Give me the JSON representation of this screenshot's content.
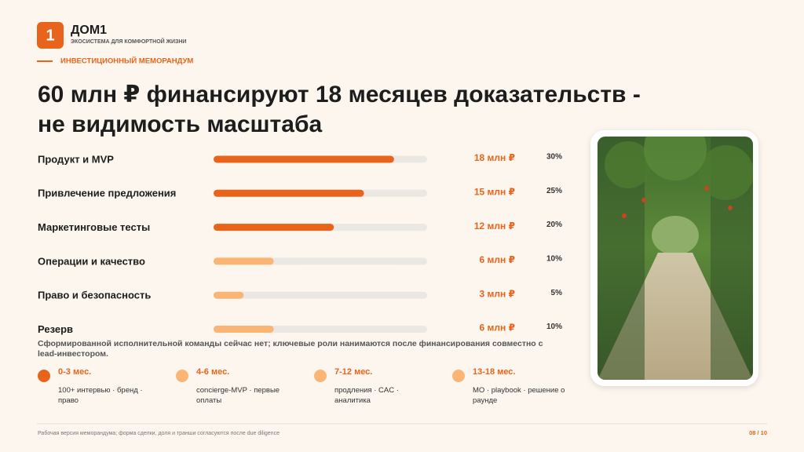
{
  "header": {
    "logo": "1",
    "brand": "ДОМ1",
    "tagline": "ЭКОСИСТЕМА ДЛЯ КОМФОРТНОЙ ЖИЗНИ",
    "section": "ИНВЕСТИЦИОННЫЙ МЕМОРАНДУМ"
  },
  "title": [
    "60 млн ₽ финансируют 18 месяцев доказательств -",
    "не видимость масштаба"
  ],
  "chart_data": {
    "type": "bar",
    "categories": [
      "Продукт и MVP",
      "Привлечение предложения",
      "Маркетинговые тесты",
      "Операции и качество",
      "Право и безопасность",
      "Резерв"
    ],
    "values": [
      18,
      15,
      12,
      6,
      3,
      6
    ],
    "value_labels": [
      "18 млн ₽",
      "15 млн ₽",
      "12 млн ₽",
      "6 млн ₽",
      "3 млн ₽",
      "6 млн ₽"
    ],
    "colors": [
      "#e8641b",
      "#e8641b",
      "#e8641b",
      "#f8b574",
      "#f8b574",
      "#f8b574"
    ],
    "track_color": "#ebe8e4",
    "xlim": [
      0,
      21.3
    ]
  },
  "shares": [
    "30%",
    "25%",
    "20%",
    "10%",
    "5%",
    "10%"
  ],
  "note": "Сформированной исполнительной команды сейчас нет; ключевые роли нанимаются после финансирования совместно с lead-инвестором.",
  "timeline": [
    {
      "period": "0-3 мес.",
      "text": "100+ интервью · бренд · право",
      "color": "#e8641b"
    },
    {
      "period": "4-6 мес.",
      "text": "concierge-MVP · первые оплаты",
      "color": "#f8b574"
    },
    {
      "period": "7-12 мес.",
      "text": "продления · CAC · аналитика",
      "color": "#f8b574"
    },
    {
      "period": "13-18 мес.",
      "text": "MO · playbook · решение о раунде",
      "color": "#f8b574"
    }
  ],
  "footer": {
    "text": "Рабочая версия меморандума; форма сделки, доля и транши согласуются после due diligence",
    "page": "08 / 10"
  }
}
